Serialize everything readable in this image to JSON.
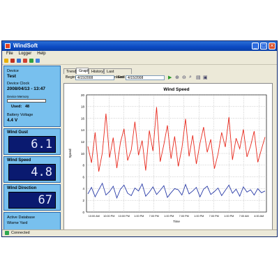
{
  "window": {
    "title": "WindSoft"
  },
  "menu": [
    "File",
    "Logger",
    "Help"
  ],
  "device": {
    "label": "Device",
    "name": "Test",
    "clock_label": "Device Clock",
    "clock": "2008/04/13 - 13:47",
    "memory_label": "Device Memory",
    "used_label": "Used:",
    "used_value": "48",
    "battery_label": "Battery Voltage",
    "battery_value": "4.4 V"
  },
  "readouts": [
    {
      "label": "Wind Gust",
      "value": "6.1"
    },
    {
      "label": "Wind Speed",
      "value": "4.8"
    },
    {
      "label": "Wind Direction",
      "value": "67"
    }
  ],
  "footer_panel": {
    "line1": "Active Database",
    "line2": "Wisme Yard"
  },
  "tabs": [
    "Trend",
    "Graph",
    "History",
    "Last Download"
  ],
  "active_tab": "Graph",
  "dates": {
    "begin_label": "Begin",
    "begin_value": "4/15/2008",
    "end_label": "End",
    "end_value": "4/15/2008"
  },
  "status": "Connected",
  "colors": {
    "gust": "#e8281c",
    "speed": "#2a3ca8"
  },
  "chart_data": {
    "type": "line",
    "title": "Wind Speed",
    "xlabel": "Time",
    "ylabel": "Speed",
    "ylim": [
      0,
      20
    ],
    "yticks": [
      "20",
      "18",
      "16",
      "14",
      "12",
      "10",
      "8",
      "6",
      "4",
      "2",
      "0"
    ],
    "xticks": [
      "10:00 AM",
      "10:00 PM",
      "10:00 PM",
      "1:00 PM",
      "7:00 PM",
      "1:00 PM",
      "7:00 PM",
      "1:00 PM",
      "7:00 PM",
      "1:00 PM",
      "7:00 AM",
      "4:00 AM"
    ],
    "grid": true,
    "series": [
      {
        "name": "",
        "values": [
          11.2,
          8.4,
          13.6,
          6.9,
          10.1,
          16.8,
          9.3,
          12.7,
          7.5,
          11.9,
          14.2,
          8.8,
          10.6,
          15.4,
          9.7,
          12.2,
          7.1,
          13.9,
          10.4,
          17.9,
          8.6,
          11.5,
          14.8,
          9.1,
          12.9,
          7.8,
          10.9,
          15.9,
          9.5,
          13.1,
          8.2,
          11.7,
          14.5,
          10.2,
          12.4,
          7.4,
          9.9,
          13.6,
          11.1,
          16.2,
          8.9,
          12.6,
          10.8,
          14.1,
          9.4,
          11.3,
          13.8,
          8.5,
          10.7,
          12.8
        ]
      },
      {
        "name": "",
        "values": [
          3.1,
          4.2,
          2.6,
          3.8,
          4.9,
          2.9,
          3.5,
          4.4,
          2.4,
          3.9,
          4.6,
          3.2,
          2.8,
          4.1,
          3.6,
          4.8,
          2.7,
          3.4,
          4.3,
          3.0,
          3.7,
          4.5,
          2.5,
          3.3,
          4.0,
          3.8,
          2.9,
          4.7,
          3.1,
          3.6,
          4.2,
          2.6,
          3.9,
          4.4,
          3.0,
          3.5,
          4.1,
          2.8,
          3.7,
          4.6,
          3.2,
          3.9,
          2.7,
          4.3,
          3.4,
          3.8,
          2.9,
          4.0,
          3.3,
          3.6
        ]
      }
    ]
  }
}
